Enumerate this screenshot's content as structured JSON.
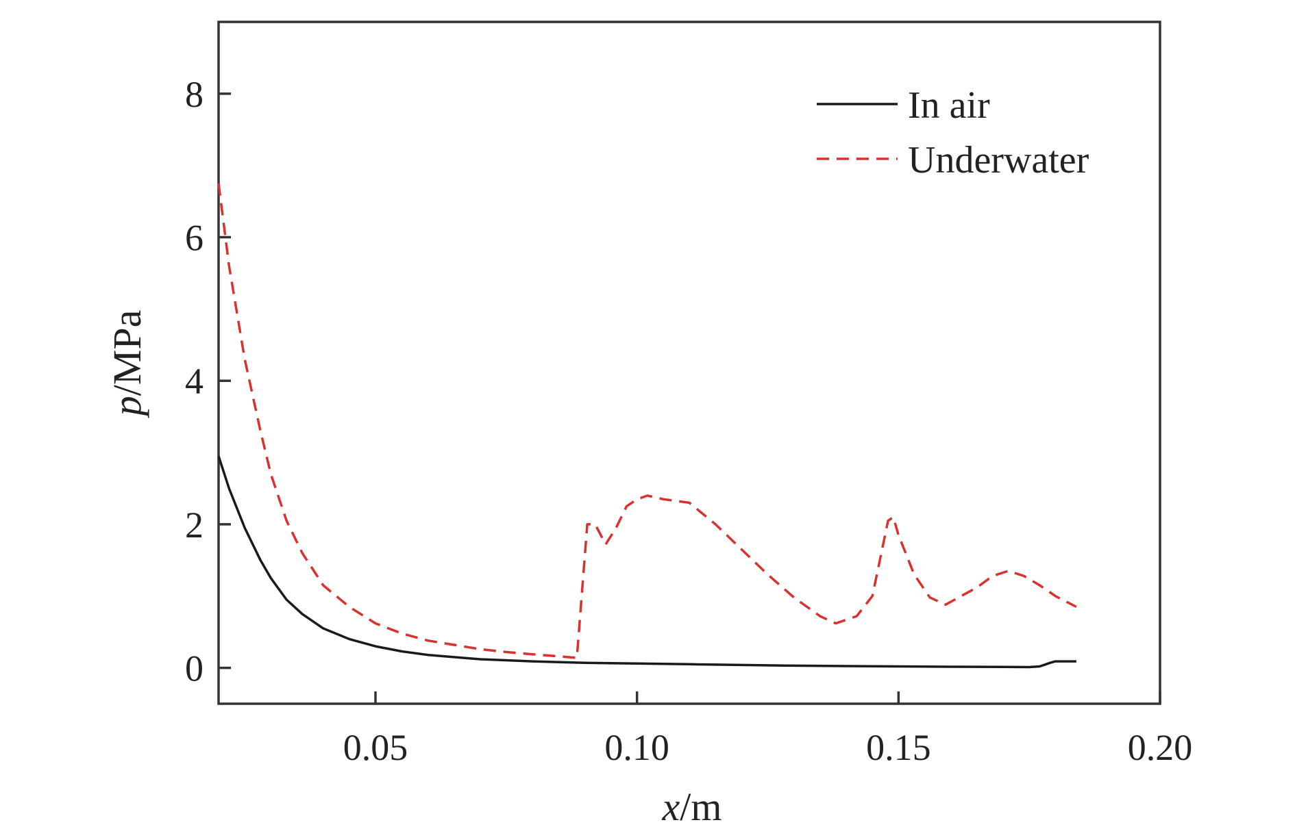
{
  "chart_data": {
    "type": "line",
    "xlabel_var": "x",
    "xlabel_unit": "/m",
    "ylabel_var": "p",
    "ylabel_unit": "/MPa",
    "xlim": [
      0.02,
      0.2
    ],
    "ylim": [
      -0.5,
      9
    ],
    "xticks": [
      0.05,
      0.1,
      0.15,
      0.2
    ],
    "xtick_labels": [
      "0.05",
      "0.10",
      "0.15",
      "0.20"
    ],
    "yticks": [
      0,
      2,
      4,
      6,
      8
    ],
    "ytick_labels": [
      "0",
      "2",
      "4",
      "6",
      "8"
    ],
    "grid": false,
    "legend_position": "top-right",
    "series": [
      {
        "name": "In air",
        "color": "#1a1a1a",
        "style": "solid",
        "x": [
          0.02,
          0.022,
          0.025,
          0.028,
          0.03,
          0.033,
          0.036,
          0.04,
          0.045,
          0.05,
          0.055,
          0.06,
          0.065,
          0.07,
          0.08,
          0.09,
          0.1,
          0.11,
          0.12,
          0.13,
          0.14,
          0.15,
          0.16,
          0.17,
          0.175,
          0.177,
          0.179,
          0.18,
          0.182,
          0.184
        ],
        "y": [
          2.95,
          2.5,
          1.95,
          1.5,
          1.25,
          0.95,
          0.75,
          0.55,
          0.4,
          0.3,
          0.23,
          0.18,
          0.15,
          0.12,
          0.09,
          0.07,
          0.06,
          0.05,
          0.04,
          0.03,
          0.025,
          0.02,
          0.015,
          0.012,
          0.01,
          0.02,
          0.07,
          0.09,
          0.09,
          0.09
        ]
      },
      {
        "name": "Underwater",
        "color": "#d93030",
        "style": "dashed",
        "x": [
          0.02,
          0.022,
          0.025,
          0.028,
          0.03,
          0.033,
          0.036,
          0.04,
          0.045,
          0.05,
          0.055,
          0.06,
          0.065,
          0.07,
          0.075,
          0.08,
          0.085,
          0.0885,
          0.0905,
          0.092,
          0.094,
          0.096,
          0.098,
          0.1,
          0.102,
          0.105,
          0.11,
          0.115,
          0.12,
          0.125,
          0.13,
          0.135,
          0.138,
          0.142,
          0.145,
          0.148,
          0.149,
          0.15,
          0.153,
          0.156,
          0.159,
          0.162,
          0.165,
          0.168,
          0.171,
          0.174,
          0.177,
          0.18,
          0.184
        ],
        "y": [
          6.75,
          5.6,
          4.3,
          3.3,
          2.7,
          2.05,
          1.6,
          1.15,
          0.85,
          0.62,
          0.48,
          0.38,
          0.32,
          0.26,
          0.22,
          0.19,
          0.16,
          0.14,
          2.0,
          2.0,
          1.72,
          1.95,
          2.25,
          2.35,
          2.4,
          2.35,
          2.3,
          2.0,
          1.65,
          1.3,
          0.98,
          0.72,
          0.62,
          0.72,
          1.0,
          2.05,
          2.1,
          1.85,
          1.3,
          0.98,
          0.88,
          1.0,
          1.12,
          1.28,
          1.35,
          1.28,
          1.15,
          1.0,
          0.85
        ]
      }
    ]
  }
}
